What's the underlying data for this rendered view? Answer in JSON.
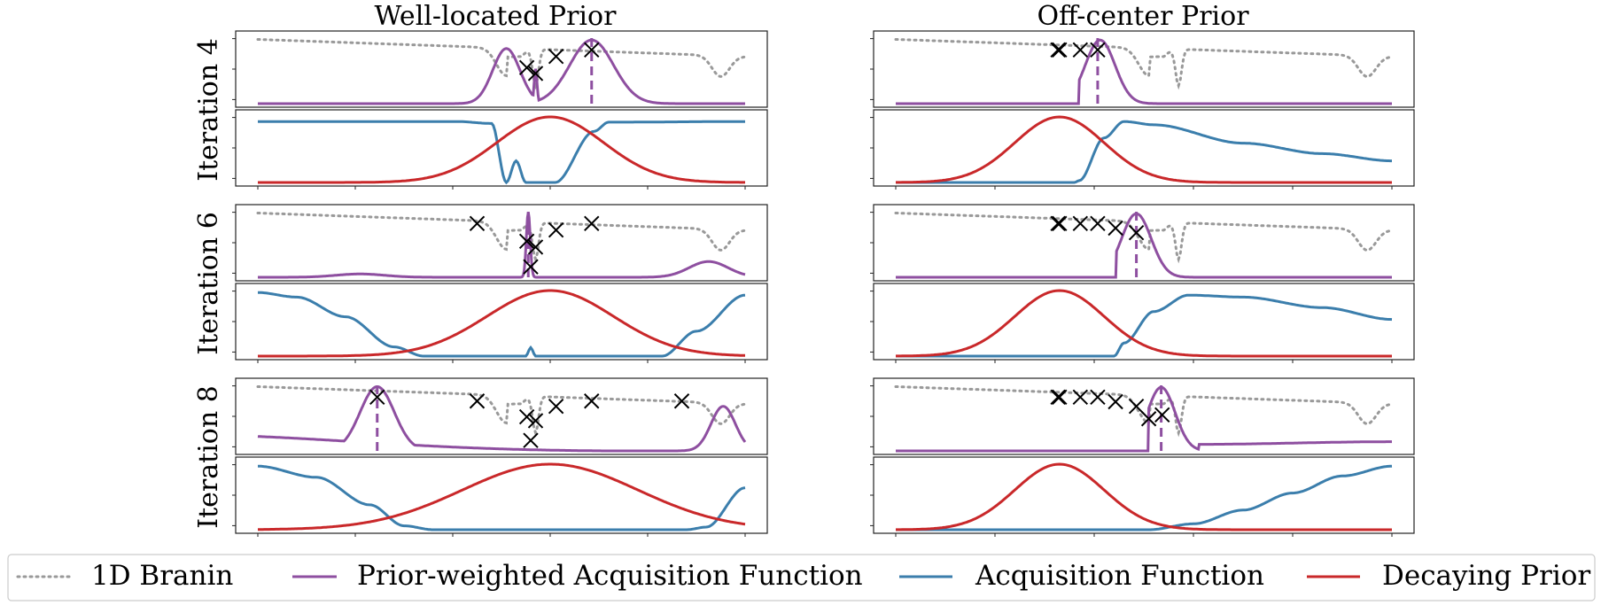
{
  "figure": {
    "column_titles": [
      "Well-located Prior",
      "Off-center Prior"
    ],
    "row_labels": [
      "Iteration 4",
      "Iteration 6",
      "Iteration 8"
    ]
  },
  "legend": [
    {
      "label": "1D Branin",
      "color": "#999999",
      "style": "dotted"
    },
    {
      "label": "Prior-weighted Acquisition Function",
      "color": "#8e4fa0",
      "style": "solid"
    },
    {
      "label": "Acquisition Function",
      "color": "#3b7eac",
      "style": "solid"
    },
    {
      "label": "Decaying Prior",
      "color": "#c9282a",
      "style": "solid"
    }
  ],
  "colors": {
    "branin": "#999999",
    "prior_weighted": "#8e4fa0",
    "acquisition": "#3b7eac",
    "prior": "#c9282a",
    "marker": "#000000"
  },
  "chart_data": {
    "type": "line",
    "x_range": [
      0,
      1
    ],
    "y_range_normalized": [
      0,
      1
    ],
    "grid": false,
    "legend_placement": "bottom",
    "panels": [
      {
        "column": "Well-located Prior",
        "row": "Iteration 4",
        "prior_center": 0.6,
        "prior_width": 0.11,
        "prior_weighted_peaks": [
          [
            0.51,
            0.84,
            0.028
          ],
          [
            0.57,
            0.53,
            0.003
          ],
          [
            0.685,
            0.97,
            0.045
          ]
        ],
        "acquisition_points": [
          [
            0,
            0.93
          ],
          [
            0.41,
            0.93
          ],
          [
            0.48,
            0.9
          ],
          [
            0.51,
            0.0
          ],
          [
            0.53,
            0.33
          ],
          [
            0.55,
            0.0
          ],
          [
            0.61,
            0.0
          ],
          [
            0.69,
            0.78
          ],
          [
            0.72,
            0.92
          ],
          [
            1,
            0.93
          ]
        ],
        "selected_x": 0.685,
        "evaluations": [
          [
            0.552,
            0.55
          ],
          [
            0.57,
            0.46
          ],
          [
            0.612,
            0.72
          ],
          [
            0.685,
            0.82
          ]
        ]
      },
      {
        "column": "Off-center Prior",
        "row": "Iteration 4",
        "prior_center": 0.33,
        "prior_width": 0.09,
        "prior_weighted_peaks": [
          [
            0.412,
            0.97,
            0.03
          ]
        ],
        "prior_weighted_cut": 0.37,
        "acquisition_points": [
          [
            0,
            0.0
          ],
          [
            0.36,
            0.0
          ],
          [
            0.37,
            0.03
          ],
          [
            0.42,
            0.68
          ],
          [
            0.46,
            0.93
          ],
          [
            0.52,
            0.88
          ],
          [
            0.7,
            0.6
          ],
          [
            0.86,
            0.44
          ],
          [
            1,
            0.33
          ]
        ],
        "selected_x": 0.407,
        "evaluations": [
          [
            0.327,
            0.82
          ],
          [
            0.33,
            0.82
          ],
          [
            0.372,
            0.82
          ],
          [
            0.407,
            0.82
          ]
        ]
      },
      {
        "column": "Well-located Prior",
        "row": "Iteration 6",
        "prior_center": 0.6,
        "prior_width": 0.13,
        "prior_weighted_peaks": [
          [
            0.555,
            0.99,
            0.004
          ],
          [
            0.21,
            0.05,
            0.05
          ],
          [
            0.925,
            0.24,
            0.04
          ]
        ],
        "acquisition_points": [
          [
            0,
            0.97
          ],
          [
            0.08,
            0.9
          ],
          [
            0.18,
            0.6
          ],
          [
            0.28,
            0.14
          ],
          [
            0.34,
            0.0
          ],
          [
            0.55,
            0.0
          ],
          [
            0.56,
            0.13
          ],
          [
            0.57,
            0.0
          ],
          [
            0.83,
            0.0
          ],
          [
            0.9,
            0.38
          ],
          [
            1,
            0.93
          ]
        ],
        "selected_x": 0.555,
        "evaluations": [
          [
            0.45,
            0.82
          ],
          [
            0.552,
            0.55
          ],
          [
            0.57,
            0.46
          ],
          [
            0.612,
            0.72
          ],
          [
            0.685,
            0.82
          ],
          [
            0.56,
            0.16
          ]
        ]
      },
      {
        "column": "Off-center Prior",
        "row": "Iteration 6",
        "prior_center": 0.33,
        "prior_width": 0.09,
        "prior_weighted_peaks": [
          [
            0.485,
            0.97,
            0.03
          ]
        ],
        "prior_weighted_cut": 0.445,
        "acquisition_points": [
          [
            0,
            0.0
          ],
          [
            0.44,
            0.0
          ],
          [
            0.46,
            0.2
          ],
          [
            0.52,
            0.68
          ],
          [
            0.59,
            0.93
          ],
          [
            0.7,
            0.9
          ],
          [
            0.86,
            0.74
          ],
          [
            1,
            0.56
          ]
        ],
        "selected_x": 0.485,
        "evaluations": [
          [
            0.327,
            0.82
          ],
          [
            0.33,
            0.82
          ],
          [
            0.372,
            0.82
          ],
          [
            0.407,
            0.82
          ],
          [
            0.443,
            0.75
          ],
          [
            0.485,
            0.68
          ]
        ]
      },
      {
        "column": "Well-located Prior",
        "row": "Iteration 8",
        "prior_center": 0.6,
        "prior_width": 0.18,
        "prior_weighted_peaks": [
          [
            0.245,
            0.98,
            0.035
          ],
          [
            0.955,
            0.68,
            0.025
          ]
        ],
        "prior_weighted_base": 0.22,
        "acquisition_points": [
          [
            0,
            0.97
          ],
          [
            0.12,
            0.8
          ],
          [
            0.23,
            0.38
          ],
          [
            0.3,
            0.06
          ],
          [
            0.36,
            0.0
          ],
          [
            0.88,
            0.0
          ],
          [
            0.92,
            0.04
          ],
          [
            1,
            0.64
          ]
        ],
        "selected_x": 0.245,
        "evaluations": [
          [
            0.245,
            0.82
          ],
          [
            0.45,
            0.76
          ],
          [
            0.552,
            0.52
          ],
          [
            0.57,
            0.46
          ],
          [
            0.612,
            0.68
          ],
          [
            0.685,
            0.76
          ],
          [
            0.87,
            0.76
          ],
          [
            0.56,
            0.16
          ]
        ]
      },
      {
        "column": "Off-center Prior",
        "row": "Iteration 8",
        "prior_center": 0.33,
        "prior_width": 0.09,
        "prior_weighted_peaks": [
          [
            0.535,
            0.97,
            0.028
          ]
        ],
        "prior_weighted_cut": 0.51,
        "prior_weighted_tail": [
          [
            0.61,
            0.1
          ],
          [
            1,
            0.14
          ]
        ],
        "acquisition_points": [
          [
            0,
            0.0
          ],
          [
            0.51,
            0.0
          ],
          [
            0.6,
            0.09
          ],
          [
            0.7,
            0.3
          ],
          [
            0.8,
            0.56
          ],
          [
            0.9,
            0.82
          ],
          [
            1,
            0.97
          ]
        ],
        "selected_x": 0.535,
        "evaluations": [
          [
            0.327,
            0.82
          ],
          [
            0.33,
            0.82
          ],
          [
            0.372,
            0.82
          ],
          [
            0.407,
            0.82
          ],
          [
            0.443,
            0.75
          ],
          [
            0.485,
            0.68
          ],
          [
            0.51,
            0.49
          ],
          [
            0.537,
            0.55
          ]
        ]
      }
    ]
  }
}
